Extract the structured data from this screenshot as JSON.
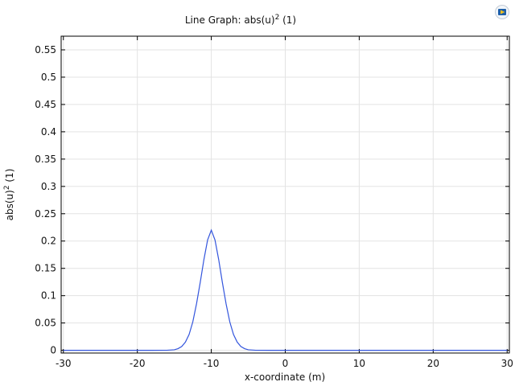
{
  "chart_data": {
    "type": "line",
    "title_main": "Line Graph: abs(u)",
    "title_sup": "2",
    "title_suffix": " (1)",
    "xlabel": "x-coordinate (m)",
    "ylabel_main": "abs(u)",
    "ylabel_sup": "2",
    "ylabel_suffix": " (1)",
    "xlim": [
      -30.3,
      30.3
    ],
    "ylim": [
      -0.005,
      0.575
    ],
    "x_ticks": [
      -30,
      -20,
      -10,
      0,
      10,
      20,
      30
    ],
    "x_tick_labels": [
      "-30",
      "-20",
      "-10",
      "0",
      "10",
      "20",
      "30"
    ],
    "y_ticks": [
      0,
      0.05,
      0.1,
      0.15,
      0.2,
      0.25,
      0.3,
      0.35,
      0.4,
      0.45,
      0.5,
      0.55
    ],
    "y_tick_labels": [
      "0",
      "0.05",
      "0.1",
      "0.15",
      "0.2",
      "0.25",
      "0.3",
      "0.35",
      "0.4",
      "0.45",
      "0.5",
      "0.55"
    ],
    "grid": true,
    "line_color": "#3355dd",
    "series": [
      {
        "x": [
          -30,
          -20,
          -18,
          -16,
          -15,
          -14.5,
          -14,
          -13.5,
          -13,
          -12.5,
          -12,
          -11.5,
          -11,
          -10.5,
          -10,
          -9.5,
          -9,
          -8.5,
          -8,
          -7.5,
          -7,
          -6.5,
          -6,
          -5.5,
          -5,
          -4,
          -2,
          0,
          10,
          20,
          30
        ],
        "y": [
          0,
          0,
          0,
          0.0001,
          0.001,
          0.003,
          0.007,
          0.015,
          0.029,
          0.052,
          0.085,
          0.124,
          0.166,
          0.202,
          0.22,
          0.202,
          0.166,
          0.124,
          0.085,
          0.052,
          0.029,
          0.015,
          0.007,
          0.003,
          0.001,
          0.0001,
          0,
          0,
          0,
          0,
          0
        ]
      }
    ]
  }
}
